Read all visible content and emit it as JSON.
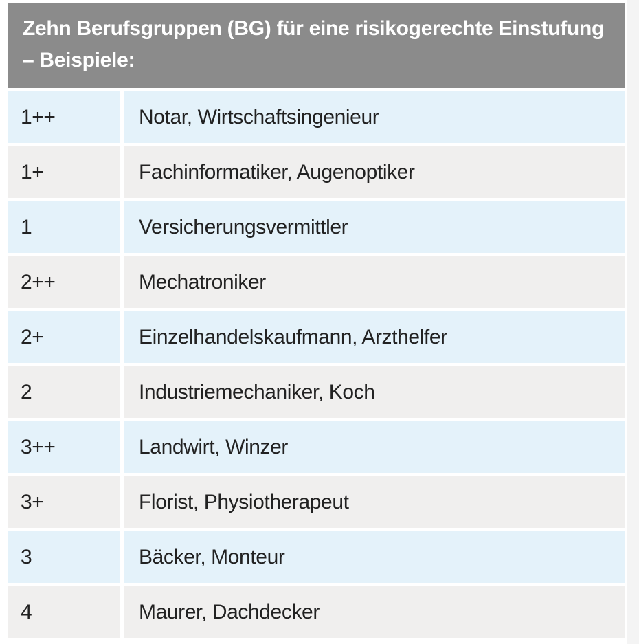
{
  "header": {
    "title": "Zehn Berufsgruppen (BG) für eine risikogerechte Einstufung – Beispiele:"
  },
  "table": {
    "rows": [
      [
        "1++",
        "Notar, Wirtschaftsingenieur"
      ],
      [
        "1+",
        "Fachinformatiker, Augenoptiker"
      ],
      [
        "1",
        "Versicherungsvermittler"
      ],
      [
        "2++",
        "Mechatroniker"
      ],
      [
        "2+",
        "Einzelhandelskaufmann, Arzthelfer"
      ],
      [
        "2",
        "Industriemechaniker, Koch"
      ],
      [
        "3++",
        "Landwirt, Winzer"
      ],
      [
        "3+",
        "Florist, Physiotherapeut"
      ],
      [
        "3",
        "Bäcker, Monteur"
      ],
      [
        "4",
        "Maurer, Dachdecker"
      ]
    ]
  }
}
